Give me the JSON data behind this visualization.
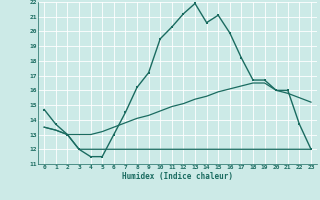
{
  "title": "",
  "xlabel": "Humidex (Indice chaleur)",
  "bg_color": "#cceae7",
  "grid_color": "#b0d0cd",
  "line_color": "#1a6b60",
  "xlim": [
    -0.5,
    23.5
  ],
  "ylim": [
    11,
    22
  ],
  "xticks": [
    0,
    1,
    2,
    3,
    4,
    5,
    6,
    7,
    8,
    9,
    10,
    11,
    12,
    13,
    14,
    15,
    16,
    17,
    18,
    19,
    20,
    21,
    22,
    23
  ],
  "yticks": [
    11,
    12,
    13,
    14,
    15,
    16,
    17,
    18,
    19,
    20,
    21,
    22
  ],
  "line1_x": [
    0,
    1,
    2,
    3,
    4,
    5,
    6,
    7,
    8,
    9,
    10,
    11,
    12,
    13,
    14,
    15,
    16,
    17,
    18,
    19,
    20,
    21,
    22,
    23
  ],
  "line1_y": [
    14.7,
    13.7,
    13.0,
    12.0,
    11.5,
    11.5,
    13.0,
    14.5,
    16.2,
    17.2,
    19.5,
    20.3,
    21.2,
    21.9,
    20.6,
    21.1,
    19.9,
    18.2,
    16.7,
    16.7,
    16.0,
    16.0,
    13.7,
    12.0
  ],
  "line2_x": [
    0,
    1,
    2,
    3,
    4,
    5,
    6,
    7,
    8,
    9,
    10,
    11,
    12,
    13,
    14,
    15,
    16,
    17,
    18,
    19,
    20,
    21,
    22,
    23
  ],
  "line2_y": [
    13.5,
    13.3,
    13.0,
    12.0,
    12.0,
    12.0,
    12.0,
    12.0,
    12.0,
    12.0,
    12.0,
    12.0,
    12.0,
    12.0,
    12.0,
    12.0,
    12.0,
    12.0,
    12.0,
    12.0,
    12.0,
    12.0,
    12.0,
    12.0
  ],
  "line3_x": [
    0,
    1,
    2,
    3,
    4,
    5,
    6,
    7,
    8,
    9,
    10,
    11,
    12,
    13,
    14,
    15,
    16,
    17,
    18,
    19,
    20,
    21,
    22,
    23
  ],
  "line3_y": [
    13.5,
    13.3,
    13.0,
    13.0,
    13.0,
    13.2,
    13.5,
    13.8,
    14.1,
    14.3,
    14.6,
    14.9,
    15.1,
    15.4,
    15.6,
    15.9,
    16.1,
    16.3,
    16.5,
    16.5,
    16.0,
    15.8,
    15.5,
    15.2
  ]
}
